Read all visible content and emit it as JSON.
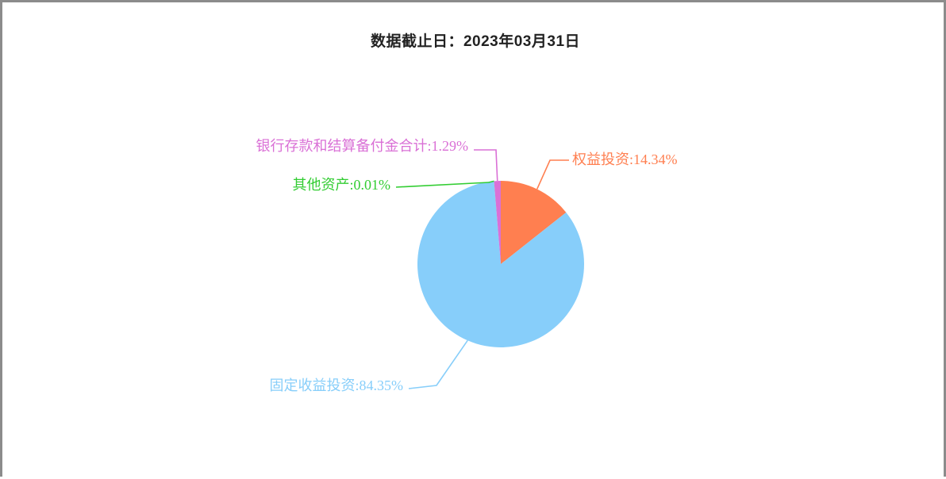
{
  "title": "数据截止日：2023年03月31日",
  "chart_data": {
    "type": "pie",
    "title": "数据截止日：2023年03月31日",
    "slices": [
      {
        "name": "权益投资",
        "value": 14.34,
        "label": "权益投资:14.34%",
        "color": "#ff7f50"
      },
      {
        "name": "固定收益投资",
        "value": 84.35,
        "label": "固定收益投资:84.35%",
        "color": "#87cefa"
      },
      {
        "name": "其他资产",
        "value": 0.01,
        "label": "其他资产:0.01%",
        "color": "#32cd32"
      },
      {
        "name": "银行存款和结算备付金合计",
        "value": 1.29,
        "label": "银行存款和结算备付金合计:1.29%",
        "color": "#da70d6"
      }
    ],
    "start_angle_deg": 90,
    "direction": "clockwise"
  }
}
